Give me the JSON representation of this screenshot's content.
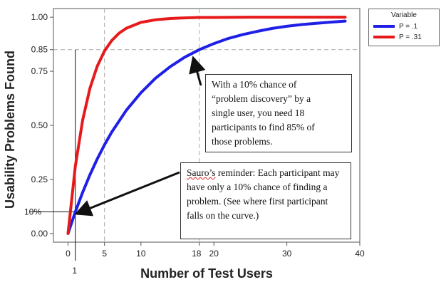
{
  "chart_data": {
    "type": "line",
    "xlabel": "Number of Test Users",
    "ylabel": "Usability Problems Found",
    "xlim": [
      -2,
      40
    ],
    "ylim": [
      -0.04,
      1.04
    ],
    "x_ticks": [
      0,
      5,
      10,
      20,
      30,
      40
    ],
    "extra_x_ticks": [
      {
        "value": 18,
        "label": "18"
      }
    ],
    "below_axis_marker": {
      "value": 1,
      "label": "1"
    },
    "y_ticks": [
      {
        "value": 0.0,
        "label": "0.00"
      },
      {
        "value": 0.25,
        "label": "0.25"
      },
      {
        "value": 0.5,
        "label": "0.50"
      },
      {
        "value": 0.75,
        "label": "0.75"
      },
      {
        "value": 1.0,
        "label": "1.00"
      }
    ],
    "extra_y_ticks": [
      {
        "value": 0.85,
        "label": "0.85"
      },
      {
        "value": 0.1,
        "label": "10%"
      }
    ],
    "reference_lines": {
      "vertical": [
        5,
        18
      ],
      "horizontal": [
        0.85
      ]
    },
    "marker_line_x": 1,
    "series": [
      {
        "name": "P = .1",
        "color": "#1f1fe6",
        "p": 0.1,
        "x": [
          0,
          1,
          2,
          3,
          4,
          5,
          6,
          8,
          10,
          12,
          14,
          16,
          18,
          20,
          22,
          24,
          26,
          28,
          30,
          32,
          34,
          36,
          38
        ],
        "y": [
          0.0,
          0.1,
          0.19,
          0.271,
          0.344,
          0.41,
          0.469,
          0.57,
          0.651,
          0.718,
          0.771,
          0.815,
          0.85,
          0.878,
          0.902,
          0.92,
          0.935,
          0.948,
          0.958,
          0.966,
          0.972,
          0.977,
          0.982
        ]
      },
      {
        "name": "P = .31",
        "color": "#e61a1a",
        "p": 0.31,
        "x": [
          0,
          1,
          2,
          3,
          4,
          5,
          6,
          7,
          8,
          10,
          12,
          14,
          16,
          18,
          20,
          25,
          30,
          35,
          38
        ],
        "y": [
          0.0,
          0.31,
          0.524,
          0.671,
          0.773,
          0.844,
          0.892,
          0.926,
          0.949,
          0.976,
          0.988,
          0.994,
          0.997,
          0.999,
          0.999,
          1.0,
          1.0,
          1.0,
          1.0
        ]
      }
    ],
    "legend": {
      "title": "Variable",
      "position": "top-right"
    }
  },
  "annotations": {
    "upper": {
      "lines": [
        "With a 10% chance of",
        "“problem discovery” by a",
        "single user, you need 18",
        "participants to find 85% of",
        "those problems."
      ]
    },
    "lower": {
      "word": "Sauro’s",
      "rest": " reminder: Each participant may have only a 10% chance of finding a problem. (See where first participant falls on the curve.)"
    }
  }
}
